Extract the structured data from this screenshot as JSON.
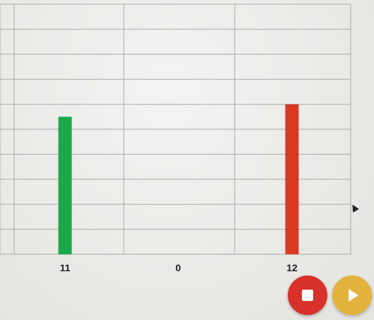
{
  "chart_data": {
    "type": "bar",
    "categories": [
      "",
      "",
      ""
    ],
    "values": [
      11,
      0,
      12
    ],
    "value_labels": [
      "11",
      "0",
      "12"
    ],
    "colors": [
      "#1aa84a",
      "#1aa84a",
      "#d93a24"
    ],
    "ylim": [
      0,
      20
    ],
    "grid": true
  },
  "controls": {
    "stop_icon": "stop-icon",
    "stop_color": "#d8302a",
    "play_icon": "play-icon",
    "play_color": "#e3b23c"
  }
}
